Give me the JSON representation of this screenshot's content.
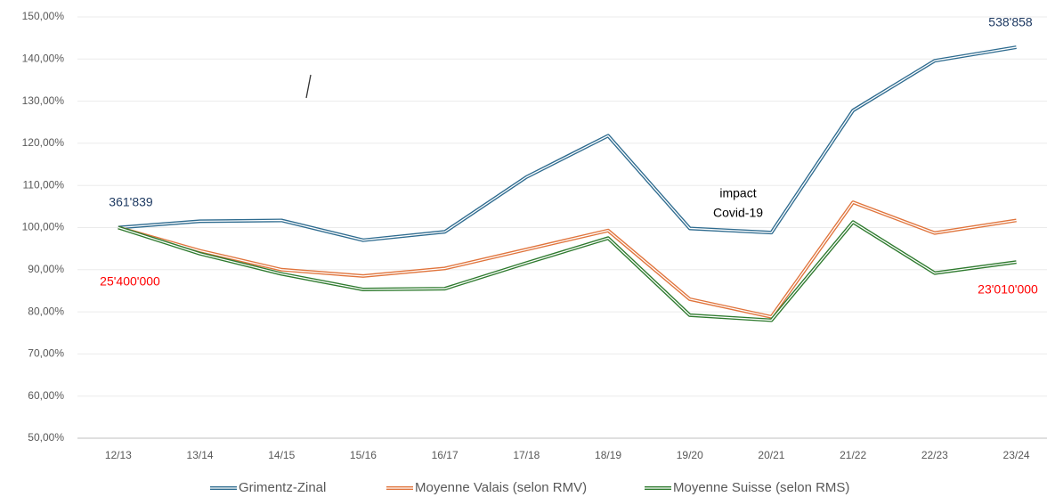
{
  "chart_data": {
    "type": "line",
    "categories": [
      "12/13",
      "13/14",
      "14/15",
      "15/16",
      "16/17",
      "17/18",
      "18/19",
      "19/20",
      "20/21",
      "21/22",
      "22/23",
      "23/24"
    ],
    "series": [
      {
        "name": "Grimentz-Zinal",
        "color": "#2e6b8f",
        "values": [
          100,
          101.5,
          101.7,
          97,
          99,
          112,
          121.8,
          99.8,
          98.8,
          127.8,
          139.6,
          142.8
        ]
      },
      {
        "name": "Moyenne Valais (selon RMV)",
        "color": "#e0743c",
        "values": [
          100,
          94.5,
          90,
          88.5,
          90.3,
          94.8,
          99.3,
          83,
          78.8,
          106,
          98.7,
          101.7
        ]
      },
      {
        "name": "Moyenne Suisse (selon RMS)",
        "color": "#2e7a2e",
        "values": [
          100,
          93.8,
          89,
          85.3,
          85.5,
          91.6,
          97.5,
          79.2,
          78,
          101.3,
          89.2,
          91.8
        ]
      }
    ],
    "ylim": [
      50,
      150
    ],
    "yticks": [
      {
        "value": 50,
        "label": "50,00%"
      },
      {
        "value": 60,
        "label": "60,00%"
      },
      {
        "value": 70,
        "label": "70,00%"
      },
      {
        "value": 80,
        "label": "80,00%"
      },
      {
        "value": 90,
        "label": "90,00%"
      },
      {
        "value": 100,
        "label": "100,00%"
      },
      {
        "value": 110,
        "label": "110,00%"
      },
      {
        "value": 120,
        "label": "120,00%"
      },
      {
        "value": 130,
        "label": "130,00%"
      },
      {
        "value": 140,
        "label": "140,00%"
      },
      {
        "value": 150,
        "label": "150,00%"
      }
    ],
    "grid": true,
    "legend": "bottom",
    "annotations": [
      {
        "lines": [
          "538'858"
        ],
        "color": "#1f3b63"
      },
      {
        "lines": [
          "361'839"
        ],
        "color": "#1f3b63"
      },
      {
        "lines": [
          "25'400'000"
        ],
        "color": "#ff0000"
      },
      {
        "lines": [
          "23'010'000"
        ],
        "color": "#ff0000"
      },
      {
        "lines": [
          "impact",
          "Covid-19"
        ],
        "color": "#000000"
      }
    ]
  }
}
